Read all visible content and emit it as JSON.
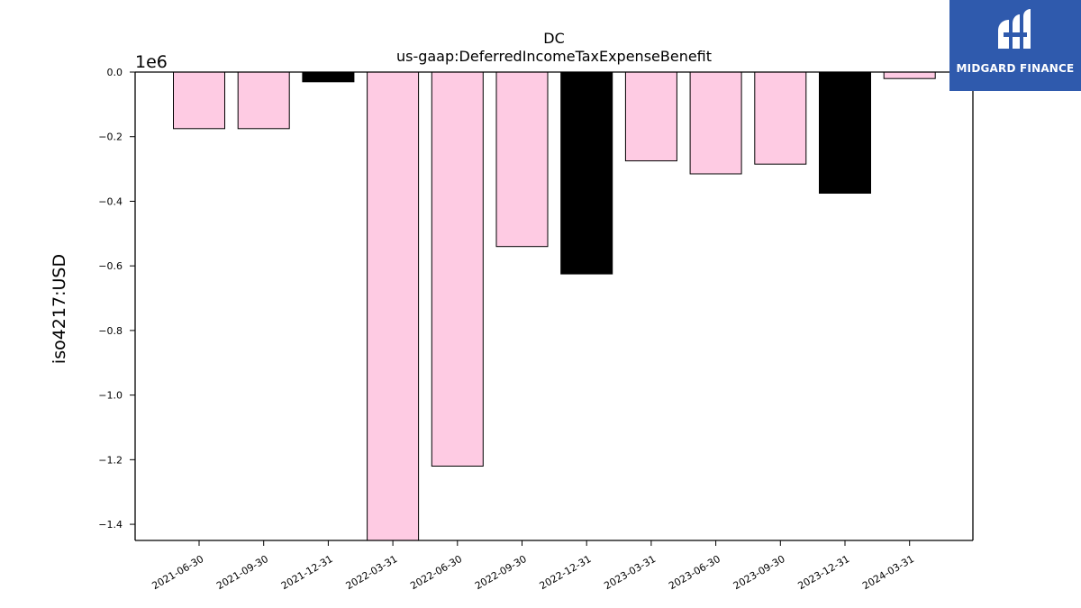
{
  "chart_data": {
    "type": "bar",
    "title": "DC",
    "subtitle": "us-gaap:DeferredIncomeTaxExpenseBenefit",
    "ylabel": "iso4217:USD",
    "xlabel": "",
    "y_scale_label": "1e6",
    "ylim": [
      -1.45,
      0.0
    ],
    "yticks": [
      0.0,
      -0.2,
      -0.4,
      -0.6,
      -0.8,
      -1.0,
      -1.2,
      -1.4
    ],
    "ytick_labels": [
      "0.0",
      "−0.2",
      "−0.4",
      "−0.6",
      "−0.8",
      "−1.0",
      "−1.2",
      "−1.4"
    ],
    "categories": [
      "2021-06-30",
      "2021-09-30",
      "2021-12-31",
      "2022-03-31",
      "2022-06-30",
      "2022-09-30",
      "2022-12-31",
      "2023-03-31",
      "2023-06-30",
      "2023-09-30",
      "2023-12-31",
      "2024-03-31"
    ],
    "values": [
      -0.175,
      -0.175,
      -0.03,
      -1.5,
      -1.22,
      -0.54,
      -0.625,
      -0.275,
      -0.315,
      -0.285,
      -0.375,
      -0.02
    ],
    "bar_colors": [
      "#fecbe3",
      "#fecbe3",
      "#000000",
      "#fecbe3",
      "#fecbe3",
      "#fecbe3",
      "#000000",
      "#fecbe3",
      "#fecbe3",
      "#fecbe3",
      "#000000",
      "#fecbe3"
    ],
    "grid": false,
    "legend": "none"
  },
  "brand": {
    "name": "MIDGARD FINANCE",
    "color": "#2f5aad"
  }
}
